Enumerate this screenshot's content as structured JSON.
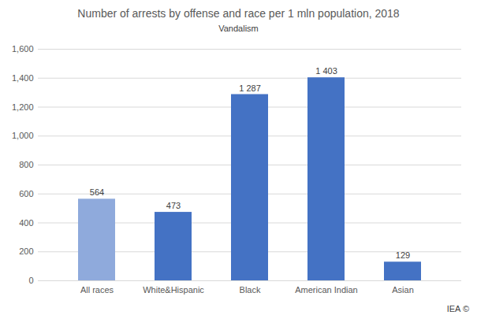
{
  "chart_data": {
    "type": "bar",
    "title": "Number of arrests by offense and race per 1 mln population, 2018",
    "subtitle": "Vandalism",
    "source": "IEA ©",
    "categories": [
      "All races",
      "White&Hispanic",
      "Black",
      "American Indian",
      "Asian"
    ],
    "values": [
      564,
      473,
      1287,
      1403,
      129
    ],
    "value_labels": [
      "564",
      "473",
      "1 287",
      "1 403",
      "129"
    ],
    "colors": [
      "#8faadc",
      "#4472c4",
      "#4472c4",
      "#4472c4",
      "#4472c4"
    ],
    "ylim": [
      0,
      1600
    ],
    "yticks": [
      0,
      200,
      400,
      600,
      800,
      1000,
      1200,
      1400,
      1600
    ],
    "grid": true,
    "data_labels": true
  }
}
